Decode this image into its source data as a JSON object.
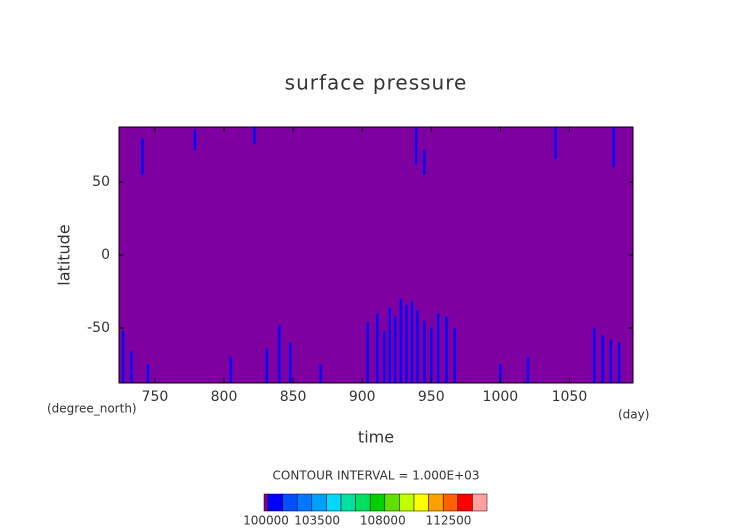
{
  "chart_data": {
    "type": "contour",
    "title": "surface pressure",
    "xlabel": "time",
    "ylabel": "latitude",
    "xunit": "(day)",
    "yunit": "(degree_north)",
    "subtitle": "CONTOUR INTERVAL = 1.000E+03",
    "xlim": [
      724,
      1096
    ],
    "ylim": [
      -87.7,
      87.7
    ],
    "xticks": [
      750,
      800,
      850,
      900,
      950,
      1000,
      1050
    ],
    "yticks": [
      -50,
      0,
      50
    ],
    "field_value": 99500,
    "features": [
      {
        "x": 741,
        "lat": [
          55,
          80
        ],
        "value": 100500
      },
      {
        "x": 779,
        "lat": [
          72,
          86
        ],
        "value": 100500
      },
      {
        "x": 822,
        "lat": [
          76,
          87.7
        ],
        "value": 100500
      },
      {
        "x": 939,
        "lat": [
          62,
          87.7
        ],
        "value": 100500
      },
      {
        "x": 945,
        "lat": [
          55,
          72
        ],
        "value": 100500
      },
      {
        "x": 1040,
        "lat": [
          66,
          87.7
        ],
        "value": 100500
      },
      {
        "x": 1082,
        "lat": [
          60,
          87.7
        ],
        "value": 100500
      },
      {
        "x": 727,
        "lat": [
          -87.7,
          -52
        ],
        "value": 100500
      },
      {
        "x": 733,
        "lat": [
          -87.7,
          -66
        ],
        "value": 100500
      },
      {
        "x": 745,
        "lat": [
          -87.7,
          -75
        ],
        "value": 100500
      },
      {
        "x": 805,
        "lat": [
          -87.7,
          -70
        ],
        "value": 100500
      },
      {
        "x": 831,
        "lat": [
          -87.7,
          -64
        ],
        "value": 100500
      },
      {
        "x": 840,
        "lat": [
          -87.7,
          -48
        ],
        "value": 100500
      },
      {
        "x": 848,
        "lat": [
          -87.7,
          -60
        ],
        "value": 100500
      },
      {
        "x": 870,
        "lat": [
          -87.7,
          -75
        ],
        "value": 100500
      },
      {
        "x": 904,
        "lat": [
          -87.7,
          -46
        ],
        "value": 100500
      },
      {
        "x": 911,
        "lat": [
          -87.7,
          -40
        ],
        "value": 100500
      },
      {
        "x": 916,
        "lat": [
          -87.7,
          -52
        ],
        "value": 100500
      },
      {
        "x": 920,
        "lat": [
          -87.7,
          -36
        ],
        "value": 100500
      },
      {
        "x": 924,
        "lat": [
          -87.7,
          -42
        ],
        "value": 100500
      },
      {
        "x": 928,
        "lat": [
          -87.7,
          -30
        ],
        "value": 100500
      },
      {
        "x": 932,
        "lat": [
          -87.7,
          -34
        ],
        "value": 100500
      },
      {
        "x": 936,
        "lat": [
          -87.7,
          -32
        ],
        "value": 100500
      },
      {
        "x": 940,
        "lat": [
          -87.7,
          -38
        ],
        "value": 100500
      },
      {
        "x": 945,
        "lat": [
          -87.7,
          -45
        ],
        "value": 100500
      },
      {
        "x": 950,
        "lat": [
          -87.7,
          -50
        ],
        "value": 100500
      },
      {
        "x": 955,
        "lat": [
          -87.7,
          -40
        ],
        "value": 100500
      },
      {
        "x": 961,
        "lat": [
          -87.7,
          -42
        ],
        "value": 100500
      },
      {
        "x": 967,
        "lat": [
          -87.7,
          -50
        ],
        "value": 100500
      },
      {
        "x": 1000,
        "lat": [
          -87.7,
          -75
        ],
        "value": 100500
      },
      {
        "x": 1020,
        "lat": [
          -87.7,
          -70
        ],
        "value": 100500
      },
      {
        "x": 1068,
        "lat": [
          -87.7,
          -50
        ],
        "value": 100500
      },
      {
        "x": 1074,
        "lat": [
          -87.7,
          -55
        ],
        "value": 100500
      },
      {
        "x": 1080,
        "lat": [
          -87.7,
          -58
        ],
        "value": 100500
      },
      {
        "x": 1086,
        "lat": [
          -87.7,
          -60
        ],
        "value": 100500
      }
    ],
    "colorbar": {
      "under_color": "#7f00a0",
      "bounds": [
        100000,
        101000,
        102000,
        103000,
        104000,
        105000,
        106000,
        107000,
        108000,
        109000,
        110000,
        111000,
        112000,
        113000,
        114000,
        115000
      ],
      "colors": [
        "#0000ff",
        "#0050ff",
        "#0078ff",
        "#00a0ff",
        "#00d8ff",
        "#00e0a0",
        "#00e060",
        "#00d000",
        "#60e000",
        "#c0ff00",
        "#ffff00",
        "#ffa000",
        "#ff6000",
        "#ff0000",
        "#ffa0a0"
      ],
      "ticks": [
        100000,
        103500,
        108000,
        112500
      ]
    }
  }
}
